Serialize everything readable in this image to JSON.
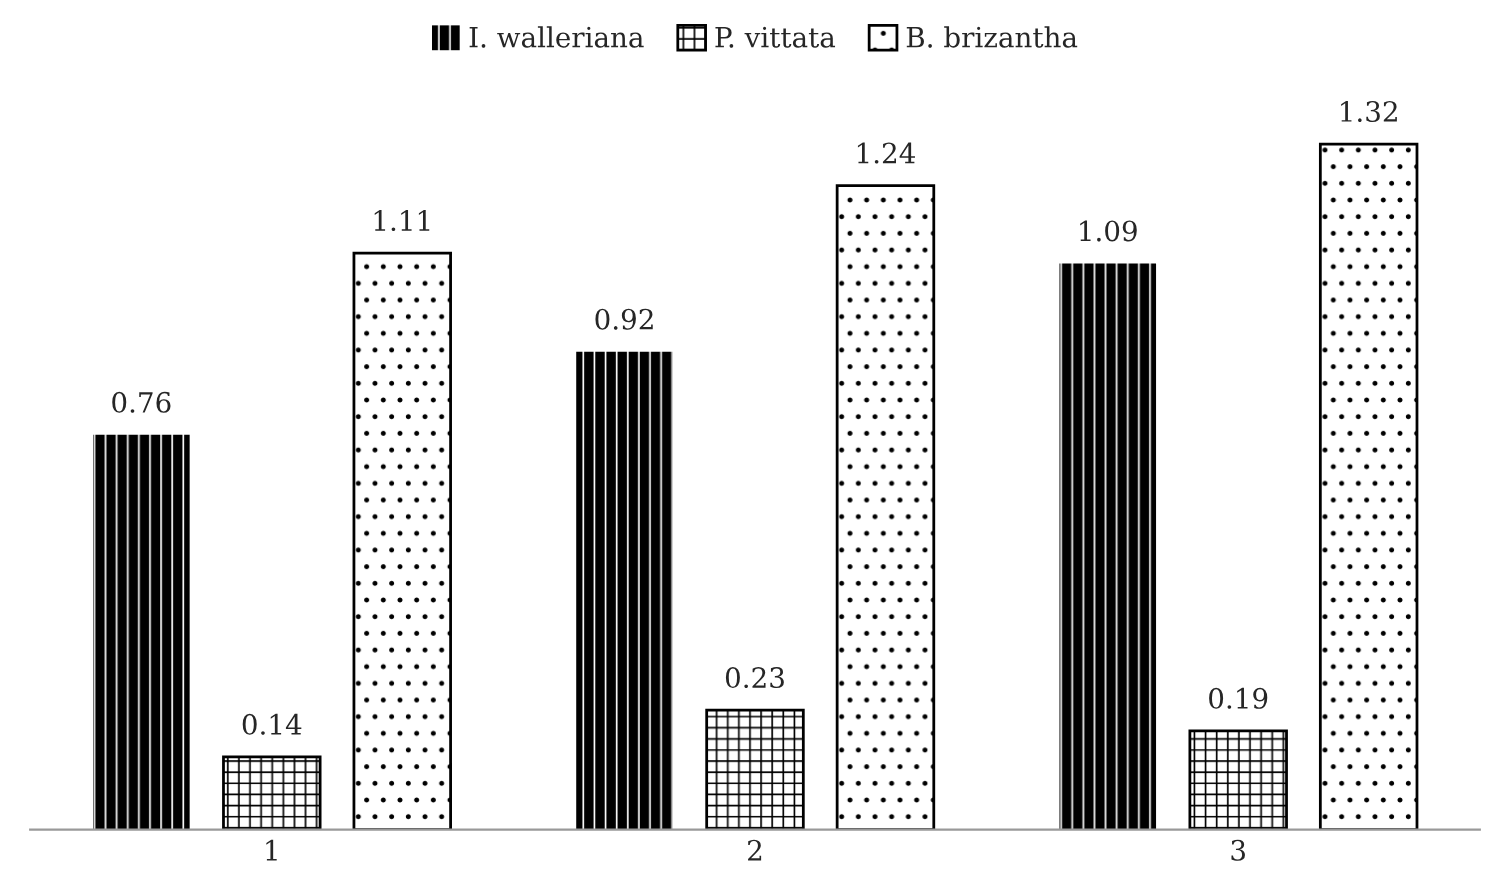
{
  "chart_data": {
    "type": "bar",
    "categories": [
      "1",
      "2",
      "3"
    ],
    "series": [
      {
        "name": "I. walleriana",
        "color": "#000000",
        "values": [
          0.76,
          0.92,
          1.09
        ]
      },
      {
        "name": "P. vittata",
        "color": "#000000",
        "values": [
          0.14,
          0.23,
          0.19
        ]
      },
      {
        "name": "B. brizantha",
        "color": "#000000",
        "values": [
          1.11,
          1.24,
          1.32
        ]
      }
    ],
    "data_labels": true,
    "legend": "top",
    "grid": false
  }
}
